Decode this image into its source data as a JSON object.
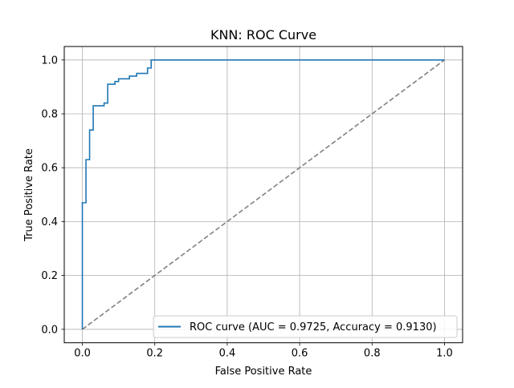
{
  "chart_data": {
    "type": "line",
    "title": "KNN: ROC Curve",
    "xlabel": "False Positive Rate",
    "ylabel": "True Positive Rate",
    "xlim": [
      -0.05,
      1.05
    ],
    "ylim": [
      -0.05,
      1.05
    ],
    "xticks": [
      0.0,
      0.2,
      0.4,
      0.6,
      0.8,
      1.0
    ],
    "xtick_labels": [
      "0.0",
      "0.2",
      "0.4",
      "0.6",
      "0.8",
      "1.0"
    ],
    "yticks": [
      0.0,
      0.2,
      0.4,
      0.6,
      0.8,
      1.0
    ],
    "ytick_labels": [
      "0.0",
      "0.2",
      "0.4",
      "0.6",
      "0.8",
      "1.0"
    ],
    "grid": true,
    "legend_position": "lower-right",
    "series": [
      {
        "name": "ROC curve (AUC = 0.9725, Accuracy = 0.9130)",
        "color": "#1f77b4",
        "style": "step",
        "x": [
          0.0,
          0.0,
          0.0,
          0.01,
          0.01,
          0.02,
          0.02,
          0.03,
          0.03,
          0.05,
          0.05,
          0.06,
          0.06,
          0.07,
          0.07,
          0.09,
          0.09,
          0.1,
          0.1,
          0.13,
          0.13,
          0.15,
          0.15,
          0.17,
          0.17,
          0.18,
          0.18,
          0.19,
          0.19,
          1.0
        ],
        "y": [
          0.0,
          0.0,
          0.47,
          0.47,
          0.63,
          0.63,
          0.74,
          0.74,
          0.83,
          0.83,
          0.83,
          0.83,
          0.84,
          0.84,
          0.91,
          0.91,
          0.92,
          0.92,
          0.93,
          0.93,
          0.94,
          0.94,
          0.95,
          0.95,
          0.95,
          0.95,
          0.97,
          0.97,
          1.0,
          1.0
        ]
      },
      {
        "name": "",
        "color": "#808080",
        "style": "dashed",
        "x": [
          0.0,
          1.0
        ],
        "y": [
          0.0,
          1.0
        ]
      }
    ]
  }
}
